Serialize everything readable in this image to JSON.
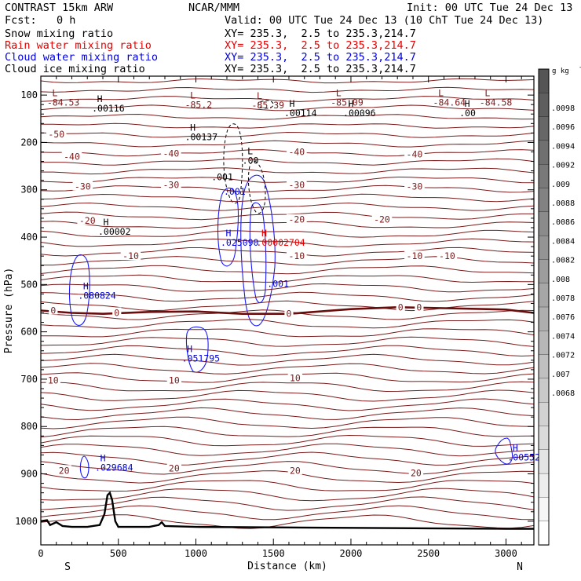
{
  "header": {
    "model": "CONTRAST 15km ARW",
    "center": "NCAR/MMM",
    "init": "Init: 00 UTC Tue 24 Dec 13",
    "fcst_label": "Fcst:",
    "fcst_value": "0 h",
    "valid": "Valid: 00 UTC Tue 24 Dec 13 (10 ChT Tue 24 Dec 13)"
  },
  "fields": [
    {
      "name": "Snow mixing ratio",
      "xy": "XY= 235.3,  2.5 to 235.3,214.7",
      "color": "#000000"
    },
    {
      "name": "Rain water mixing ratio",
      "xy": "XY= 235.3,  2.5 to 235.3,214.7",
      "color": "#e60000"
    },
    {
      "name": "Cloud water mixing ratio",
      "xy": "XY= 235.3,  2.5 to 235.3,214.7",
      "color": "#0000e0"
    },
    {
      "name": "Cloud ice mixing ratio",
      "xy": "XY= 235.3,  2.5 to 235.3,214.7",
      "color": "#000000"
    }
  ],
  "chart_data": {
    "type": "contour",
    "xlabel": "Distance (km)",
    "ylabel": "Pressure (hPa)",
    "x_ticks": [
      "0",
      "500",
      "1000",
      "1500",
      "2000",
      "2500",
      "3000"
    ],
    "x_tick_values": [
      0,
      500,
      1000,
      1500,
      2000,
      2500,
      3000
    ],
    "xlim": [
      0,
      3180
    ],
    "y_ticks": [
      "100",
      "200",
      "300",
      "400",
      "500",
      "600",
      "700",
      "800",
      "900",
      "1000"
    ],
    "y_tick_values": [
      100,
      200,
      300,
      400,
      500,
      600,
      700,
      800,
      900,
      1000
    ],
    "ylim": [
      60,
      1050
    ],
    "end_labels": {
      "left": "S",
      "right": "N"
    },
    "colorbar": {
      "unit": "g kg",
      "unit_exp": "-1",
      "labels": [
        ".0098",
        ".0096",
        ".0094",
        ".0092",
        ".009",
        ".0088",
        ".0086",
        ".0084",
        ".0082",
        ".008",
        ".0078",
        ".0076",
        ".0074",
        ".0072",
        ".007",
        ".0068"
      ],
      "colors": {
        "top": "#555555",
        "bottom": "#ffffff"
      }
    },
    "temperature_contours": {
      "color": "#7a1a1a",
      "zero_color": "#6a0d0d",
      "labels": [
        {
          "text": "-50",
          "x": 100,
          "p": 183
        },
        {
          "text": "-40",
          "x": 200,
          "p": 230
        },
        {
          "text": "-40",
          "x": 840,
          "p": 223
        },
        {
          "text": "-40",
          "x": 1650,
          "p": 220
        },
        {
          "text": "-40",
          "x": 2410,
          "p": 225
        },
        {
          "text": "-30",
          "x": 270,
          "p": 293
        },
        {
          "text": "-30",
          "x": 840,
          "p": 290
        },
        {
          "text": "-30",
          "x": 1650,
          "p": 290
        },
        {
          "text": "-30",
          "x": 2410,
          "p": 293
        },
        {
          "text": "-20",
          "x": 300,
          "p": 365
        },
        {
          "text": "-20",
          "x": 1650,
          "p": 363
        },
        {
          "text": "-20",
          "x": 2200,
          "p": 363
        },
        {
          "text": "-10",
          "x": 580,
          "p": 440
        },
        {
          "text": "-10",
          "x": 1650,
          "p": 440
        },
        {
          "text": "-10",
          "x": 2410,
          "p": 440
        },
        {
          "text": "-10",
          "x": 2620,
          "p": 440
        },
        {
          "text": "0",
          "x": 80,
          "p": 555
        },
        {
          "text": "0",
          "x": 490,
          "p": 560
        },
        {
          "text": "0",
          "x": 1600,
          "p": 562
        },
        {
          "text": "0",
          "x": 2320,
          "p": 548
        },
        {
          "text": "0",
          "x": 2440,
          "p": 548
        },
        {
          "text": "10",
          "x": 80,
          "p": 703
        },
        {
          "text": "10",
          "x": 860,
          "p": 703
        },
        {
          "text": "10",
          "x": 1640,
          "p": 698
        },
        {
          "text": "20",
          "x": 150,
          "p": 893
        },
        {
          "text": "20",
          "x": 860,
          "p": 888
        },
        {
          "text": "20",
          "x": 1640,
          "p": 893
        },
        {
          "text": "20",
          "x": 2420,
          "p": 898
        }
      ]
    },
    "extrema": [
      {
        "kind": "L",
        "value": "-84.53",
        "x": 70,
        "p": 112,
        "color": "#7a1a1a"
      },
      {
        "kind": "H",
        "value": ".00116",
        "x": 360,
        "p": 125,
        "color": "#000000"
      },
      {
        "kind": "L",
        "value": "-85.2",
        "x": 960,
        "p": 117,
        "color": "#7a1a1a"
      },
      {
        "kind": "L",
        "value": "-85.39",
        "x": 1390,
        "p": 118,
        "color": "#7a1a1a"
      },
      {
        "kind": "H",
        "value": ".00114",
        "x": 1600,
        "p": 135,
        "color": "#000000"
      },
      {
        "kind": "L",
        "value": "-85.09",
        "x": 1900,
        "p": 112,
        "color": "#7a1a1a"
      },
      {
        "kind": "H",
        "value": ".00096",
        "x": 1980,
        "p": 135,
        "color": "#000000"
      },
      {
        "kind": "L",
        "value": "-84.64",
        "x": 2560,
        "p": 112,
        "color": "#7a1a1a"
      },
      {
        "kind": "L",
        "value": "-84.58",
        "x": 2860,
        "p": 112,
        "color": "#7a1a1a"
      },
      {
        "kind": "H",
        "value": ".00",
        "x": 2730,
        "p": 135,
        "color": "#000000"
      },
      {
        "kind": "H",
        "value": ".00137",
        "x": 960,
        "p": 185,
        "color": "#000000"
      },
      {
        "kind": "L",
        "value": ".00",
        "x": 1330,
        "p": 235,
        "color": "#000000"
      },
      {
        "kind": "H",
        "value": ".00002",
        "x": 400,
        "p": 385,
        "color": "#000000"
      },
      {
        "kind": "H",
        "value": ".025090",
        "x": 1190,
        "p": 408,
        "color": "#0000e0"
      },
      {
        "kind": "H",
        "value": ".00002704",
        "x": 1420,
        "p": 408,
        "color": "#e60000"
      },
      {
        "kind": "H",
        "value": ".080824",
        "x": 270,
        "p": 520,
        "color": "#0000e0"
      },
      {
        "kind": "H",
        "value": ".051795",
        "x": 940,
        "p": 653,
        "color": "#0000e0"
      },
      {
        "kind": "H",
        "value": ".029684",
        "x": 380,
        "p": 883,
        "color": "#0000e0"
      },
      {
        "kind": "H",
        "value": ".00552",
        "x": 3040,
        "p": 862,
        "color": "#0000e0"
      }
    ],
    "contour_labels": [
      {
        "text": ".001",
        "x": 1170,
        "p": 280,
        "color": "#000000"
      },
      {
        "text": ".001",
        "x": 1250,
        "p": 310,
        "color": "#0000e0"
      },
      {
        "text": ".001",
        "x": 1530,
        "p": 505,
        "color": "#0000e0"
      }
    ],
    "terrain": {
      "color": "#000000",
      "points": [
        [
          0,
          1000
        ],
        [
          40,
          998
        ],
        [
          60,
          1008
        ],
        [
          100,
          1002
        ],
        [
          140,
          1010
        ],
        [
          200,
          1012
        ],
        [
          300,
          1012
        ],
        [
          380,
          1008
        ],
        [
          410,
          985
        ],
        [
          430,
          945
        ],
        [
          445,
          940
        ],
        [
          460,
          955
        ],
        [
          480,
          1000
        ],
        [
          500,
          1012
        ],
        [
          700,
          1012
        ],
        [
          760,
          1008
        ],
        [
          780,
          1002
        ],
        [
          800,
          1010
        ],
        [
          1000,
          1012
        ],
        [
          1500,
          1013
        ],
        [
          2000,
          1014
        ],
        [
          2500,
          1015
        ],
        [
          3000,
          1016
        ],
        [
          3180,
          1016
        ]
      ]
    }
  }
}
